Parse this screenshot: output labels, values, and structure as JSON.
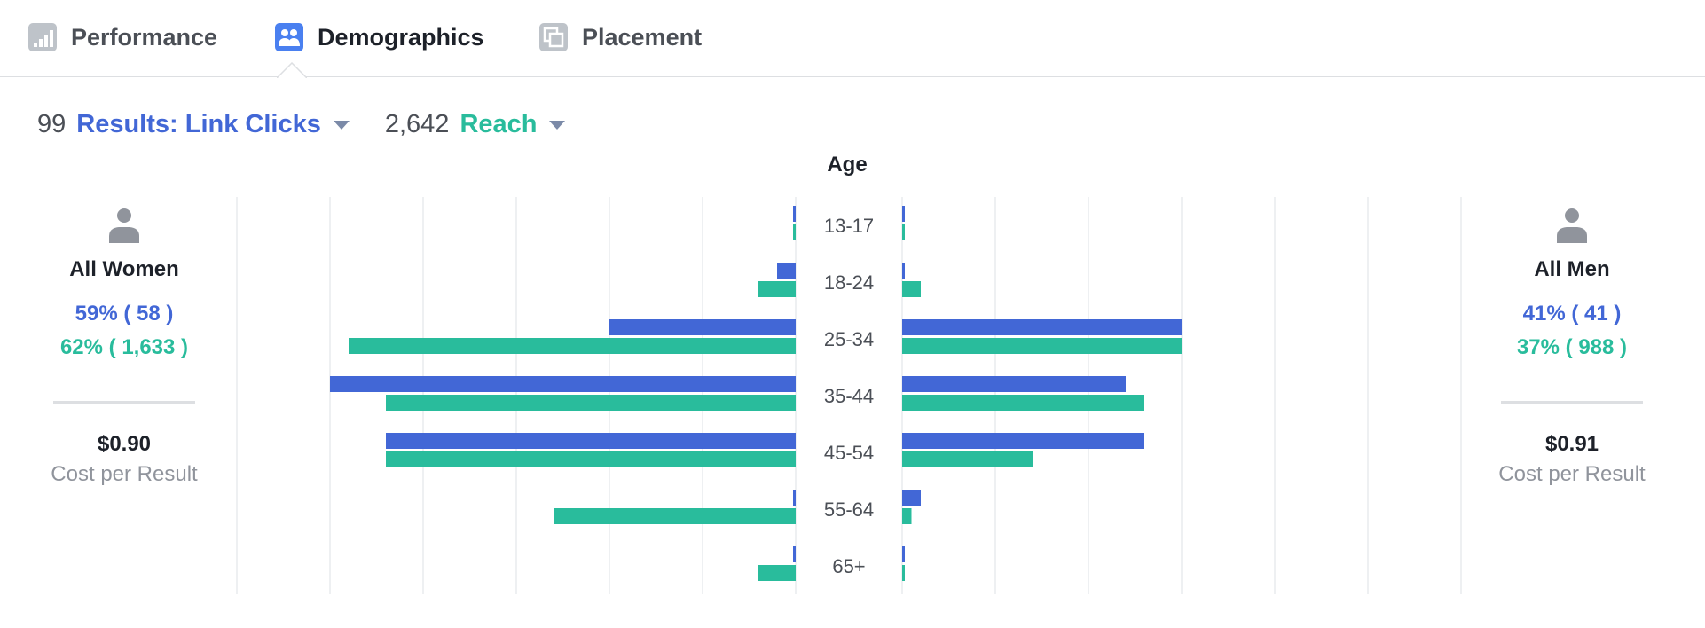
{
  "tabs": [
    {
      "label": "Performance",
      "icon": "bar-chart-icon",
      "active": false
    },
    {
      "label": "Demographics",
      "icon": "people-icon",
      "active": true
    },
    {
      "label": "Placement",
      "icon": "placement-icon",
      "active": false
    }
  ],
  "metrics": {
    "results": {
      "value": "99",
      "label": "Results: Link Clicks",
      "color": "#4267d6"
    },
    "reach": {
      "value": "2,642",
      "label": "Reach",
      "color": "#29bc9c"
    }
  },
  "women": {
    "title": "All Women",
    "results_text": "59% ( 58 )",
    "reach_text": "62% ( 1,633 )",
    "cost": "$0.90",
    "cost_label": "Cost per Result"
  },
  "men": {
    "title": "All Men",
    "results_text": "41% ( 41 )",
    "reach_text": "37% ( 988 )",
    "cost": "$0.91",
    "cost_label": "Cost per Result"
  },
  "chart_data": {
    "type": "bar",
    "orientation": "horizontal-butterfly",
    "title": "Age",
    "categories": [
      "13-17",
      "18-24",
      "25-34",
      "35-44",
      "45-54",
      "55-64",
      "65+"
    ],
    "xlim_percent": [
      0,
      60
    ],
    "grid": true,
    "colors": {
      "results": "#4267d6",
      "reach": "#29bc9c"
    },
    "series": [
      {
        "group": "All Women",
        "name": "Results: Link Clicks",
        "values_percent": [
          0,
          2,
          20,
          50,
          44,
          0,
          0
        ]
      },
      {
        "group": "All Women",
        "name": "Reach",
        "values_percent": [
          0,
          4,
          48,
          44,
          44,
          26,
          4
        ]
      },
      {
        "group": "All Men",
        "name": "Results: Link Clicks",
        "values_percent": [
          0,
          0,
          30,
          24,
          26,
          2,
          0
        ]
      },
      {
        "group": "All Men",
        "name": "Reach",
        "values_percent": [
          0,
          2,
          30,
          26,
          14,
          1,
          0
        ]
      }
    ]
  }
}
